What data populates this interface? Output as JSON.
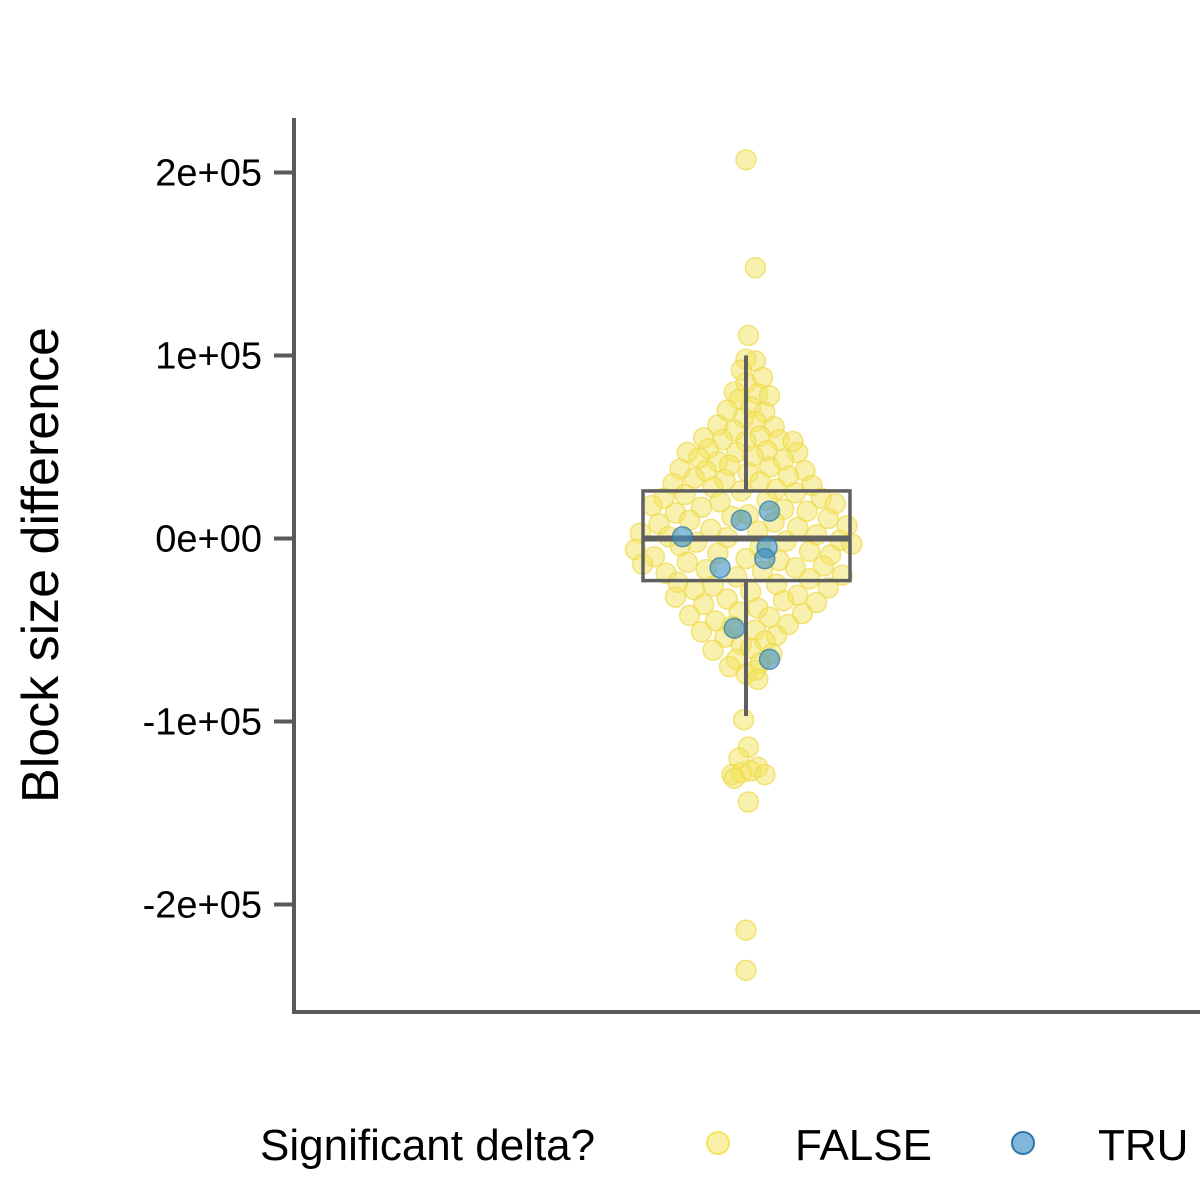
{
  "chart_data": {
    "type": "scatter",
    "subtype": "beeswarm-with-boxplot",
    "title": "",
    "xlabel": "",
    "ylabel": "Block size difference",
    "ylim": [
      -260000,
      230000
    ],
    "yticks": [
      200000,
      100000,
      0,
      -100000,
      -200000
    ],
    "ytick_labels": [
      "2e+05",
      "1e+05",
      "0e+00",
      "-1e+05",
      "-2e+05"
    ],
    "grid": false,
    "legend": {
      "title": "Significant delta?",
      "placement": "bottom",
      "entries": [
        {
          "label": "FALSE",
          "color": "#F2E45C"
        },
        {
          "label": "TRU",
          "color": "#3A8FC6"
        }
      ]
    },
    "boxplot": {
      "q1": -23000,
      "median": 0,
      "q3": 26000,
      "whisker_low": -97000,
      "whisker_high": 100000,
      "color": "#606060"
    },
    "series": [
      {
        "name": "FALSE",
        "color": "#F2E45C",
        "points": [
          [
            0.0,
            207000
          ],
          [
            0.04,
            148000
          ],
          [
            0.01,
            111000
          ],
          [
            0.0,
            98000
          ],
          [
            0.04,
            97000
          ],
          [
            -0.02,
            92000
          ],
          [
            0.07,
            88000
          ],
          [
            0.0,
            85000
          ],
          [
            -0.05,
            80000
          ],
          [
            0.05,
            79000
          ],
          [
            0.1,
            78000
          ],
          [
            -0.03,
            76000
          ],
          [
            0.02,
            72000
          ],
          [
            -0.08,
            70000
          ],
          [
            0.08,
            69000
          ],
          [
            -0.01,
            66000
          ],
          [
            0.04,
            64000
          ],
          [
            -0.12,
            62000
          ],
          [
            0.12,
            61000
          ],
          [
            -0.05,
            59000
          ],
          [
            0.06,
            56000
          ],
          [
            -0.18,
            55000
          ],
          [
            -0.1,
            54000
          ],
          [
            0.0,
            53000
          ],
          [
            0.14,
            54000
          ],
          [
            0.2,
            53000
          ],
          [
            -0.16,
            49000
          ],
          [
            0.09,
            48000
          ],
          [
            -0.25,
            47000
          ],
          [
            -0.04,
            47000
          ],
          [
            0.22,
            47000
          ],
          [
            0.03,
            45000
          ],
          [
            -0.2,
            44000
          ],
          [
            -0.12,
            42000
          ],
          [
            0.16,
            43000
          ],
          [
            -0.07,
            40000
          ],
          [
            0.1,
            39000
          ],
          [
            -0.28,
            38000
          ],
          [
            -0.17,
            37000
          ],
          [
            0.25,
            37000
          ],
          [
            0.01,
            36000
          ],
          [
            0.18,
            34000
          ],
          [
            -0.22,
            33000
          ],
          [
            -0.09,
            32000
          ],
          [
            0.06,
            31000
          ],
          [
            -0.31,
            30000
          ],
          [
            0.28,
            29000
          ],
          [
            -0.14,
            28000
          ],
          [
            0.13,
            27000
          ],
          [
            -0.02,
            26000
          ],
          [
            0.21,
            25000
          ],
          [
            -0.26,
            24000
          ],
          [
            -0.35,
            22000
          ],
          [
            0.32,
            22000
          ],
          [
            0.09,
            21000
          ],
          [
            -0.11,
            20000
          ],
          [
            0.38,
            19000
          ],
          [
            -0.4,
            18000
          ],
          [
            -0.19,
            17000
          ],
          [
            0.16,
            16000
          ],
          [
            0.26,
            15000
          ],
          [
            -0.3,
            14000
          ],
          [
            0.01,
            13000
          ],
          [
            -0.06,
            12000
          ],
          [
            0.35,
            11000
          ],
          [
            -0.24,
            10000
          ],
          [
            0.12,
            9000
          ],
          [
            -0.37,
            8000
          ],
          [
            0.43,
            7000
          ],
          [
            0.22,
            6000
          ],
          [
            -0.15,
            5000
          ],
          [
            0.05,
            4000
          ],
          [
            -0.45,
            3000
          ],
          [
            0.3,
            2000
          ],
          [
            -0.33,
            1000
          ],
          [
            -0.08,
            500
          ],
          [
            0.4,
            -1000
          ],
          [
            0.17,
            -1500
          ],
          [
            -0.21,
            -2000
          ],
          [
            0.45,
            -3000
          ],
          [
            -0.28,
            -4000
          ],
          [
            0.06,
            -5000
          ],
          [
            -0.47,
            -6000
          ],
          [
            0.27,
            -7000
          ],
          [
            -0.12,
            -8000
          ],
          [
            0.36,
            -9000
          ],
          [
            -0.39,
            -10000
          ],
          [
            0.0,
            -11000
          ],
          [
            0.14,
            -12000
          ],
          [
            -0.25,
            -13000
          ],
          [
            -0.44,
            -14000
          ],
          [
            0.33,
            -15000
          ],
          [
            0.21,
            -16000
          ],
          [
            -0.17,
            -17000
          ],
          [
            0.07,
            -18000
          ],
          [
            -0.34,
            -19000
          ],
          [
            0.41,
            -20000
          ],
          [
            -0.04,
            -21000
          ],
          [
            0.27,
            -22000
          ],
          [
            -0.29,
            -24000
          ],
          [
            0.13,
            -25000
          ],
          [
            -0.14,
            -26000
          ],
          [
            0.35,
            -27000
          ],
          [
            -0.22,
            -28000
          ],
          [
            0.02,
            -29000
          ],
          [
            0.22,
            -31000
          ],
          [
            -0.3,
            -32000
          ],
          [
            -0.08,
            -33000
          ],
          [
            0.16,
            -34000
          ],
          [
            0.3,
            -35000
          ],
          [
            -0.18,
            -36000
          ],
          [
            0.05,
            -38000
          ],
          [
            -0.03,
            -40000
          ],
          [
            0.24,
            -41000
          ],
          [
            -0.24,
            -42000
          ],
          [
            0.1,
            -43000
          ],
          [
            -0.13,
            -45000
          ],
          [
            0.18,
            -47000
          ],
          [
            -0.06,
            -48000
          ],
          [
            0.04,
            -50000
          ],
          [
            -0.19,
            -51000
          ],
          [
            0.13,
            -53000
          ],
          [
            -0.09,
            -54000
          ],
          [
            0.08,
            -56000
          ],
          [
            -0.02,
            -58000
          ],
          [
            0.02,
            -60000
          ],
          [
            -0.14,
            -61000
          ],
          [
            0.11,
            -63000
          ],
          [
            -0.04,
            -66000
          ],
          [
            0.06,
            -68000
          ],
          [
            -0.07,
            -70000
          ],
          [
            0.04,
            -72000
          ],
          [
            0.0,
            -74000
          ],
          [
            0.05,
            -77000
          ],
          [
            -0.01,
            -99000
          ],
          [
            0.01,
            -114000
          ],
          [
            -0.03,
            -120000
          ],
          [
            0.05,
            -125000
          ],
          [
            -0.06,
            -129000
          ],
          [
            -0.02,
            -128000
          ],
          [
            0.02,
            -127000
          ],
          [
            0.08,
            -129000
          ],
          [
            -0.05,
            -131000
          ],
          [
            0.01,
            -144000
          ],
          [
            0.0,
            -214000
          ],
          [
            0.0,
            -236000
          ]
        ]
      },
      {
        "name": "TRU",
        "color": "#3A8FC6",
        "points": [
          [
            0.1,
            15000
          ],
          [
            -0.02,
            10000
          ],
          [
            -0.27,
            1000
          ],
          [
            0.09,
            -5000
          ],
          [
            0.08,
            -11000
          ],
          [
            -0.11,
            -16000
          ],
          [
            -0.05,
            -49000
          ],
          [
            0.1,
            -66000
          ]
        ]
      }
    ]
  }
}
